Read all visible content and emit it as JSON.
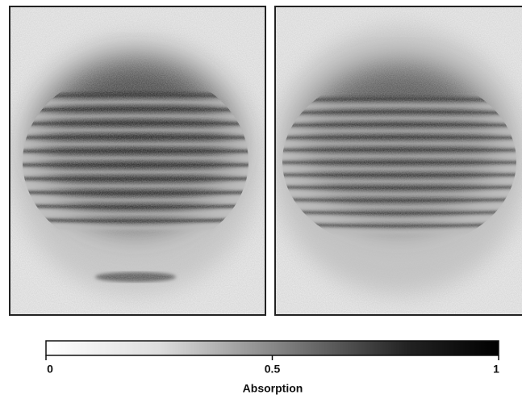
{
  "colorbar": {
    "label": "Absorption",
    "range": [
      0,
      1
    ],
    "ticks": [
      0,
      0.5,
      1
    ]
  }
}
